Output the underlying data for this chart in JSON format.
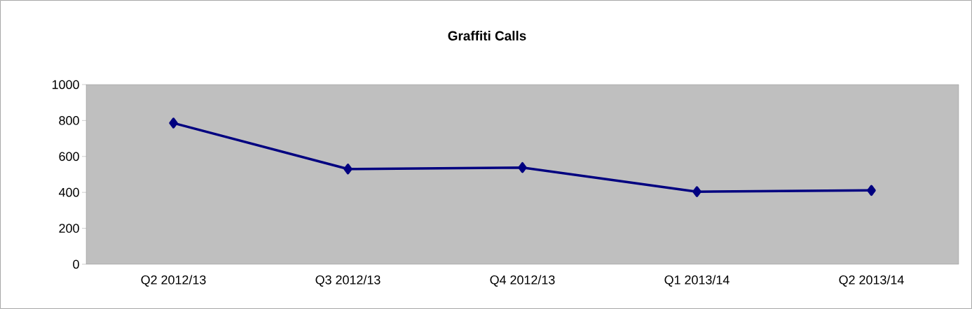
{
  "chart_data": {
    "type": "line",
    "title": "Graffiti Calls",
    "categories": [
      "Q2 2012/13",
      "Q3 2012/13",
      "Q4 2012/13",
      "Q1 2013/14",
      "Q2 2013/14"
    ],
    "values": [
      786,
      530,
      538,
      404,
      411
    ],
    "color": "#000080",
    "marker": "diamond",
    "line_style": "solid",
    "ylim": [
      0,
      1000
    ],
    "yticks": [
      0,
      200,
      400,
      600,
      800,
      1000
    ],
    "grid": false
  }
}
